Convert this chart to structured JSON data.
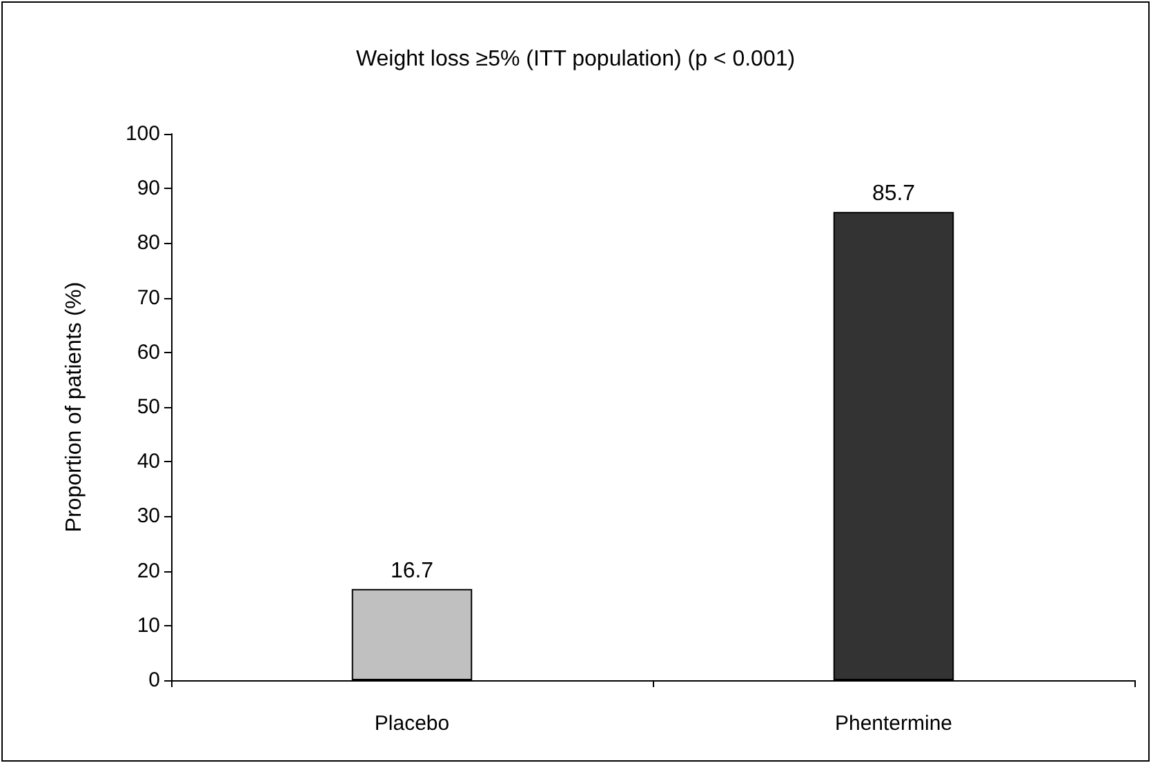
{
  "chart_data": {
    "type": "bar",
    "title": "Weight loss ≥5% (ITT population) (p < 0.001)",
    "ylabel": "Proportion of patients (%)",
    "categories": [
      "Placebo",
      "Phentermine"
    ],
    "values": [
      16.7,
      85.7
    ],
    "colors": [
      "#c0c0c0",
      "#333333"
    ],
    "ylim": [
      0,
      100
    ],
    "yticks": [
      0,
      10,
      20,
      30,
      40,
      50,
      60,
      70,
      80,
      90,
      100
    ],
    "grid": false,
    "data_labels": true
  }
}
